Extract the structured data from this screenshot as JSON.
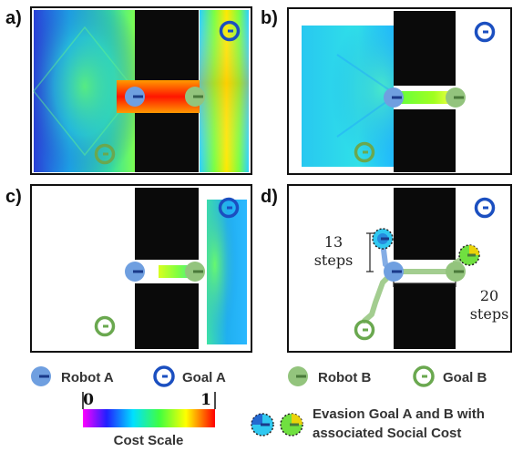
{
  "panels": [
    {
      "label": "a)"
    },
    {
      "label": "b)"
    },
    {
      "label": "c)"
    },
    {
      "label": "d)"
    }
  ],
  "annotations": {
    "steps_13_num": "13",
    "steps_13_word": "steps",
    "steps_20_num": "20",
    "steps_20_word": "steps"
  },
  "legend": {
    "robot_a": "Robot A",
    "goal_a": "Goal A",
    "robot_b": "Robot B",
    "goal_b": "Goal B",
    "evasion_line1": "Evasion Goal A and B with",
    "evasion_line2": "associated Social Cost",
    "cost_scale_label": "Cost Scale",
    "cost_min": "0",
    "cost_max": "1"
  },
  "colors": {
    "robot_a": "#6f9fe0",
    "goal_a": "#1b4fc0",
    "robot_b": "#93c47d",
    "goal_b": "#6aa84f",
    "wall": "#0a0a0a"
  }
}
